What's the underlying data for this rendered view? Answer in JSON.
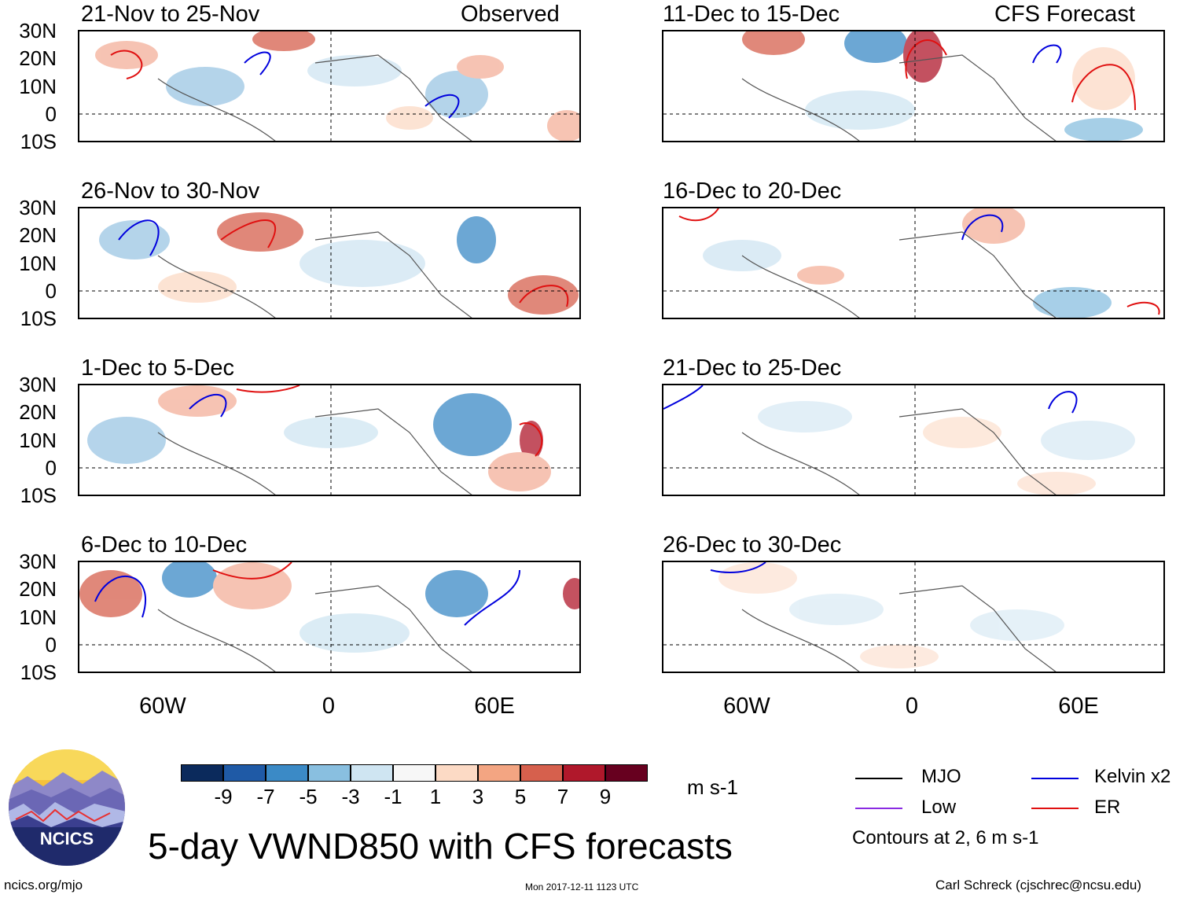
{
  "figure": {
    "title": "5-day VWND850 with CFS forecasts",
    "left_tag": "Observed",
    "right_tag": "CFS Forecast"
  },
  "panels_left": [
    {
      "title": "21-Nov to 25-Nov"
    },
    {
      "title": "26-Nov to 30-Nov"
    },
    {
      "title": "1-Dec to 5-Dec"
    },
    {
      "title": "6-Dec to 10-Dec"
    }
  ],
  "panels_right": [
    {
      "title": "11-Dec to 15-Dec"
    },
    {
      "title": "16-Dec to 20-Dec"
    },
    {
      "title": "21-Dec to 25-Dec"
    },
    {
      "title": "26-Dec to 30-Dec"
    }
  ],
  "lat_labels": [
    "30N",
    "20N",
    "10N",
    "0",
    "10S"
  ],
  "lon_labels": [
    "60W",
    "0",
    "60E"
  ],
  "colorbar": {
    "colors": [
      "#0b2a5c",
      "#1f5aa6",
      "#3b8ac6",
      "#89bfe0",
      "#cfe5f2",
      "#f7f7f7",
      "#fcdac5",
      "#f3a582",
      "#d6604d",
      "#b0182b",
      "#67001f"
    ],
    "ticks": [
      "-9",
      "-7",
      "-5",
      "-3",
      "-1",
      "1",
      "3",
      "5",
      "7",
      "9"
    ],
    "units": "m s-1"
  },
  "legend": {
    "items": [
      {
        "label": "MJO",
        "color": "#000000"
      },
      {
        "label": "Kelvin x2",
        "color": "#0000dd"
      },
      {
        "label": "Low",
        "color": "#8a2be2"
      },
      {
        "label": "ER",
        "color": "#e01010"
      }
    ],
    "contour_note": "Contours at 2, 6 m s-1"
  },
  "footer": {
    "site": "ncics.org/mjo",
    "timestamp": "Mon 2017-12-11 1123 UTC",
    "author": "Carl Schreck (cjschrec@ncsu.edu)",
    "logo_text": "NCICS"
  },
  "colors": {
    "blue_shade": "#9cc6e4",
    "red_shade": "#f4b09a",
    "coast": "#555555",
    "kelvin": "#0000dd",
    "er": "#e01010"
  }
}
